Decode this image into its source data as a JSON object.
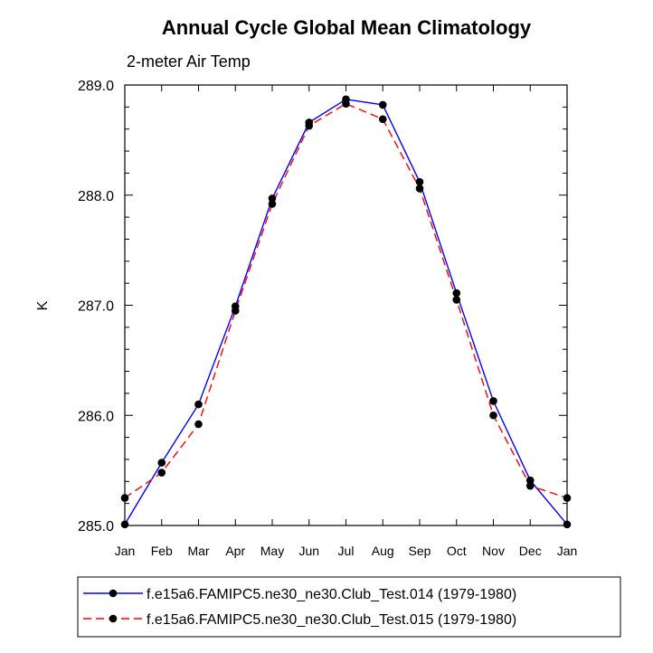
{
  "chart_data": {
    "type": "line",
    "title": "Annual Cycle Global Mean Climatology",
    "subtitle": "2-meter Air Temp",
    "xlabel": "",
    "ylabel": "K",
    "categories": [
      "Jan",
      "Feb",
      "Mar",
      "Apr",
      "May",
      "Jun",
      "Jul",
      "Aug",
      "Sep",
      "Oct",
      "Nov",
      "Dec",
      "Jan"
    ],
    "yticks": [
      285.0,
      286.0,
      287.0,
      288.0,
      289.0
    ],
    "ytick_labels": [
      "285.0",
      "286.0",
      "287.0",
      "288.0",
      "289.0"
    ],
    "ylim": [
      285.0,
      289.0
    ],
    "series": [
      {
        "name": "f.e15a6.FAMIPC5.ne30_ne30.Club_Test.014 (1979-1980)",
        "color": "#0000ff",
        "dash": "solid",
        "values": [
          285.01,
          285.57,
          286.1,
          286.99,
          287.97,
          288.66,
          288.87,
          288.82,
          288.12,
          287.11,
          286.13,
          285.41,
          285.01
        ]
      },
      {
        "name": "f.e15a6.FAMIPC5.ne30_ne30.Club_Test.015 (1979-1980)",
        "color": "#ff0000",
        "dash": "dashed",
        "values": [
          285.25,
          285.48,
          285.92,
          286.95,
          287.92,
          288.63,
          288.83,
          288.69,
          288.06,
          287.05,
          286.0,
          285.36,
          285.25
        ]
      }
    ],
    "legend_position": "bottom"
  }
}
